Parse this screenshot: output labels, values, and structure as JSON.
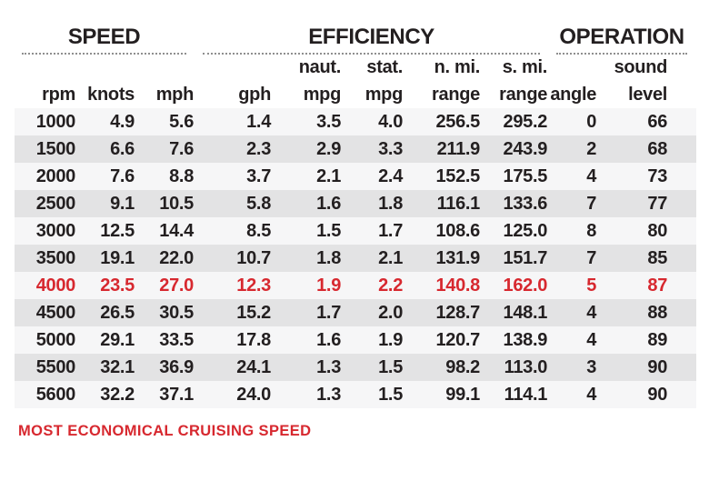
{
  "chart_data": {
    "type": "table",
    "groups": [
      {
        "label": "SPEED",
        "columns": [
          "rpm",
          "knots",
          "mph"
        ]
      },
      {
        "label": "EFFICIENCY",
        "columns": [
          "gph",
          "naut_mpg",
          "stat_mpg",
          "nmi_range",
          "smi_range"
        ]
      },
      {
        "label": "OPERATION",
        "columns": [
          "angle",
          "sound_level"
        ]
      }
    ],
    "columns": [
      {
        "key": "rpm",
        "top": "",
        "bottom": "rpm"
      },
      {
        "key": "knots",
        "top": "",
        "bottom": "knots"
      },
      {
        "key": "mph",
        "top": "",
        "bottom": "mph"
      },
      {
        "key": "gph",
        "top": "",
        "bottom": "gph"
      },
      {
        "key": "naut_mpg",
        "top": "naut.",
        "bottom": "mpg"
      },
      {
        "key": "stat_mpg",
        "top": "stat.",
        "bottom": "mpg"
      },
      {
        "key": "nmi_range",
        "top": "n. mi.",
        "bottom": "range"
      },
      {
        "key": "smi_range",
        "top": "s. mi.",
        "bottom": "range"
      },
      {
        "key": "angle",
        "top": "",
        "bottom": "angle"
      },
      {
        "key": "sound_level",
        "top": "sound",
        "bottom": "level"
      }
    ],
    "rows": [
      {
        "highlight": false,
        "values": [
          "1000",
          "4.9",
          "5.6",
          "1.4",
          "3.5",
          "4.0",
          "256.5",
          "295.2",
          "0",
          "66"
        ]
      },
      {
        "highlight": false,
        "values": [
          "1500",
          "6.6",
          "7.6",
          "2.3",
          "2.9",
          "3.3",
          "211.9",
          "243.9",
          "2",
          "68"
        ]
      },
      {
        "highlight": false,
        "values": [
          "2000",
          "7.6",
          "8.8",
          "3.7",
          "2.1",
          "2.4",
          "152.5",
          "175.5",
          "4",
          "73"
        ]
      },
      {
        "highlight": false,
        "values": [
          "2500",
          "9.1",
          "10.5",
          "5.8",
          "1.6",
          "1.8",
          "116.1",
          "133.6",
          "7",
          "77"
        ]
      },
      {
        "highlight": false,
        "values": [
          "3000",
          "12.5",
          "14.4",
          "8.5",
          "1.5",
          "1.7",
          "108.6",
          "125.0",
          "8",
          "80"
        ]
      },
      {
        "highlight": false,
        "values": [
          "3500",
          "19.1",
          "22.0",
          "10.7",
          "1.8",
          "2.1",
          "131.9",
          "151.7",
          "7",
          "85"
        ]
      },
      {
        "highlight": true,
        "values": [
          "4000",
          "23.5",
          "27.0",
          "12.3",
          "1.9",
          "2.2",
          "140.8",
          "162.0",
          "5",
          "87"
        ]
      },
      {
        "highlight": false,
        "values": [
          "4500",
          "26.5",
          "30.5",
          "15.2",
          "1.7",
          "2.0",
          "128.7",
          "148.1",
          "4",
          "88"
        ]
      },
      {
        "highlight": false,
        "values": [
          "5000",
          "29.1",
          "33.5",
          "17.8",
          "1.6",
          "1.9",
          "120.7",
          "138.9",
          "4",
          "89"
        ]
      },
      {
        "highlight": false,
        "values": [
          "5500",
          "32.1",
          "36.9",
          "24.1",
          "1.3",
          "1.5",
          "98.2",
          "113.0",
          "3",
          "90"
        ]
      },
      {
        "highlight": false,
        "values": [
          "5600",
          "32.2",
          "37.1",
          "24.0",
          "1.3",
          "1.5",
          "99.1",
          "114.1",
          "4",
          "90"
        ]
      }
    ],
    "note": "MOST ECONOMICAL CRUISING SPEED"
  },
  "colors": {
    "highlight_red": "#d7282f",
    "stripe_gray": "#e3e3e4",
    "row_light": "#f6f6f7",
    "text_dark": "#231f20",
    "dotted_rule": "#8f8f8f"
  }
}
